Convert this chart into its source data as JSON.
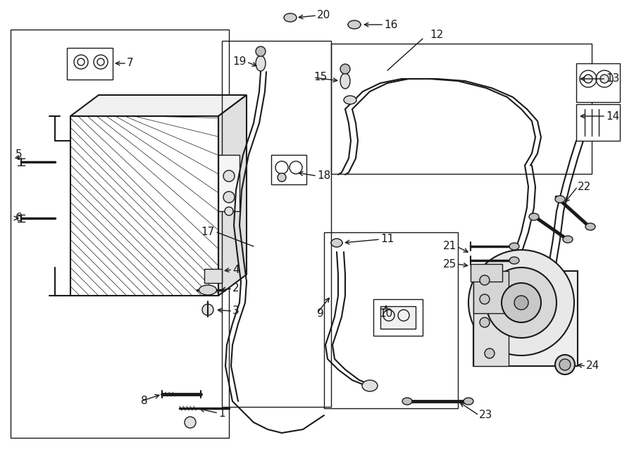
{
  "bg_color": "#ffffff",
  "line_color": "#1a1a1a",
  "fig_width": 9.0,
  "fig_height": 6.62,
  "dpi": 100,
  "label_fontsize": 11,
  "small_label_fontsize": 9
}
